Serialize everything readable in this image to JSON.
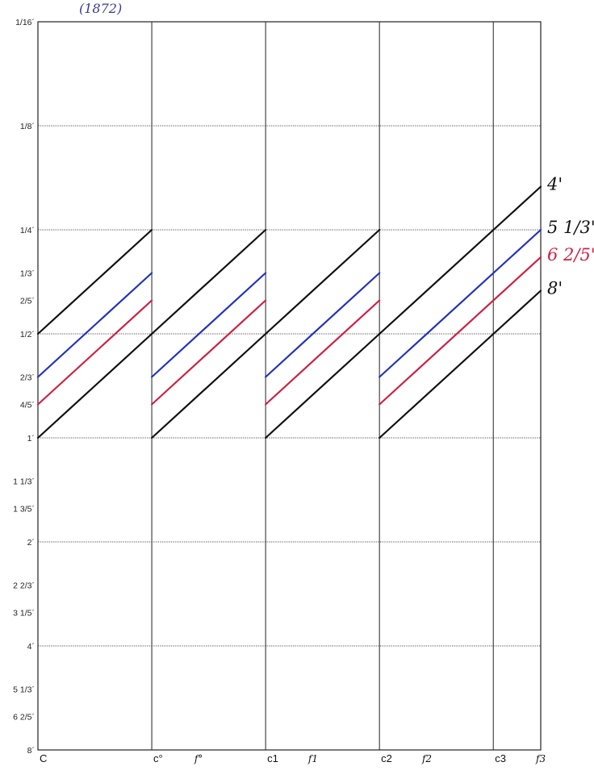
{
  "note": "(1872)",
  "chart_data": {
    "type": "line",
    "title": "",
    "xlabel": "",
    "ylabel": "",
    "y_scale": "log2 of pipe length (feet), inverted",
    "y_ticks": [
      {
        "label": "1/16´",
        "value": 0.0625
      },
      {
        "label": "1/8´",
        "value": 0.125
      },
      {
        "label": "1/4´",
        "value": 0.25
      },
      {
        "label": "1/3´",
        "value": 0.3333
      },
      {
        "label": "2/5´",
        "value": 0.4
      },
      {
        "label": "1/2´",
        "value": 0.5
      },
      {
        "label": "2/3´",
        "value": 0.6667
      },
      {
        "label": "4/5´",
        "value": 0.8
      },
      {
        "label": "1´",
        "value": 1
      },
      {
        "label": "1 1/3´",
        "value": 1.3333
      },
      {
        "label": "1 3/5´",
        "value": 1.6
      },
      {
        "label": "2´",
        "value": 2
      },
      {
        "label": "2 2/3´",
        "value": 2.6667
      },
      {
        "label": "3 1/5´",
        "value": 3.2
      },
      {
        "label": "4´",
        "value": 4
      },
      {
        "label": "5 1/3´",
        "value": 5.3333
      },
      {
        "label": "6 2/5´",
        "value": 6.4
      },
      {
        "label": "8´",
        "value": 8
      }
    ],
    "y_major": [
      0.0625,
      0.125,
      0.25,
      0.5,
      1,
      2,
      4,
      8
    ],
    "x_ticks": [
      {
        "label": "C",
        "octave": 0,
        "style": "print"
      },
      {
        "label": "c°",
        "octave": 1,
        "style": "print"
      },
      {
        "label": "f°",
        "octave": 1.4167,
        "style": "hand"
      },
      {
        "label": "c1",
        "octave": 2,
        "style": "print"
      },
      {
        "label": "f1",
        "octave": 2.4167,
        "style": "hand"
      },
      {
        "label": "c2",
        "octave": 3,
        "style": "print"
      },
      {
        "label": "f2",
        "octave": 3.4167,
        "style": "hand"
      },
      {
        "label": "c3",
        "octave": 4,
        "style": "print"
      },
      {
        "label": "f3",
        "octave": 4.4167,
        "style": "hand"
      }
    ],
    "x_range": [
      0,
      4.4167
    ],
    "grid": true,
    "series": [
      {
        "name": "4´",
        "color": "#111111",
        "segments": [
          [
            [
              0,
              0.5
            ],
            [
              1,
              0.25
            ]
          ],
          [
            [
              1,
              0.5
            ],
            [
              2,
              0.25
            ]
          ],
          [
            [
              2,
              0.5
            ],
            [
              3,
              0.25
            ]
          ],
          [
            [
              3,
              0.5
            ],
            [
              4.4167,
              0.1875
            ]
          ]
        ]
      },
      {
        "name": "5 1/3´",
        "color": "#2233bb",
        "segments": [
          [
            [
              0,
              0.6667
            ],
            [
              1,
              0.3333
            ]
          ],
          [
            [
              1,
              0.6667
            ],
            [
              2,
              0.3333
            ]
          ],
          [
            [
              2,
              0.6667
            ],
            [
              3,
              0.3333
            ]
          ],
          [
            [
              3,
              0.6667
            ],
            [
              4.4167,
              0.25
            ]
          ]
        ]
      },
      {
        "name": "6 2/5´",
        "color": "#cc2244",
        "segments": [
          [
            [
              0,
              0.8
            ],
            [
              1,
              0.4
            ]
          ],
          [
            [
              1,
              0.8
            ],
            [
              2,
              0.4
            ]
          ],
          [
            [
              2,
              0.8
            ],
            [
              3,
              0.4
            ]
          ],
          [
            [
              3,
              0.8
            ],
            [
              4.4167,
              0.3
            ]
          ]
        ]
      },
      {
        "name": "8´",
        "color": "#111111",
        "segments": [
          [
            [
              0,
              1
            ],
            [
              1,
              0.5
            ]
          ],
          [
            [
              1,
              1
            ],
            [
              2,
              0.5
            ]
          ],
          [
            [
              2,
              1
            ],
            [
              3,
              0.5
            ]
          ],
          [
            [
              3,
              1
            ],
            [
              4.4167,
              0.375
            ]
          ]
        ]
      }
    ],
    "series_labels": [
      {
        "series": 0,
        "text": "4'",
        "color": "#111111"
      },
      {
        "series": 1,
        "text": "5 1/3'",
        "color": "#111111"
      },
      {
        "series": 2,
        "text": "6 2/5'",
        "color": "#cc2244"
      },
      {
        "series": 3,
        "text": "8'",
        "color": "#111111"
      }
    ]
  }
}
